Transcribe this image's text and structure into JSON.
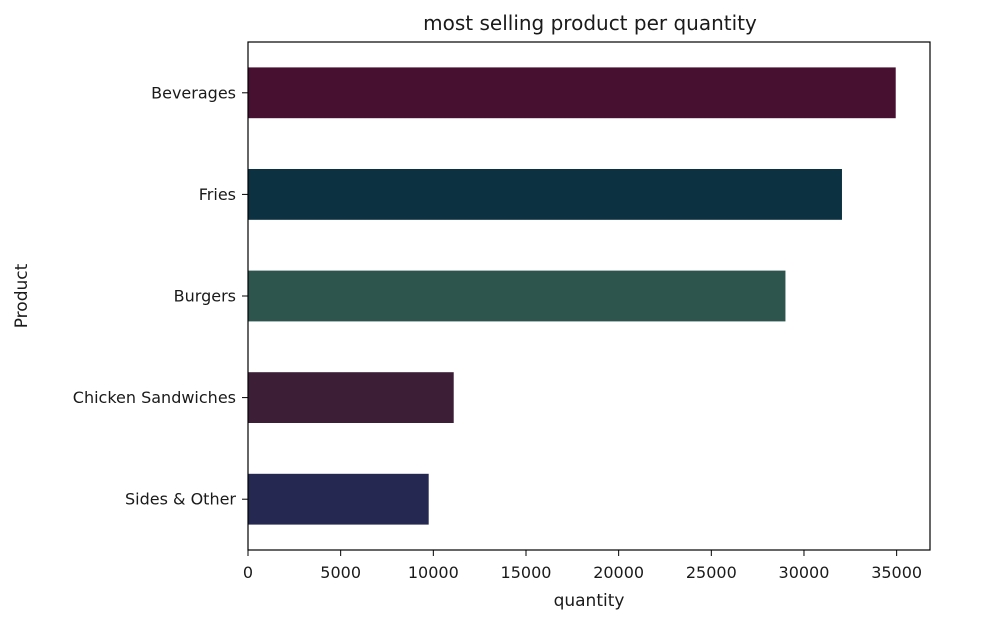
{
  "chart_data": {
    "type": "bar",
    "orientation": "horizontal",
    "title": "most selling product per quantity",
    "xlabel": "quantity",
    "ylabel": "Product",
    "categories": [
      "Beverages",
      "Fries",
      "Burgers",
      "Chicken Sandwiches",
      "Sides & Other"
    ],
    "values": [
      34950,
      32050,
      29000,
      11100,
      9750
    ],
    "colors": [
      "#471030",
      "#0c3140",
      "#2e554d",
      "#3c1f36",
      "#252850"
    ],
    "xlim": [
      0,
      36800
    ],
    "xticks": [
      0,
      5000,
      10000,
      15000,
      20000,
      25000,
      30000,
      35000
    ],
    "grid": false,
    "legend": "none"
  }
}
